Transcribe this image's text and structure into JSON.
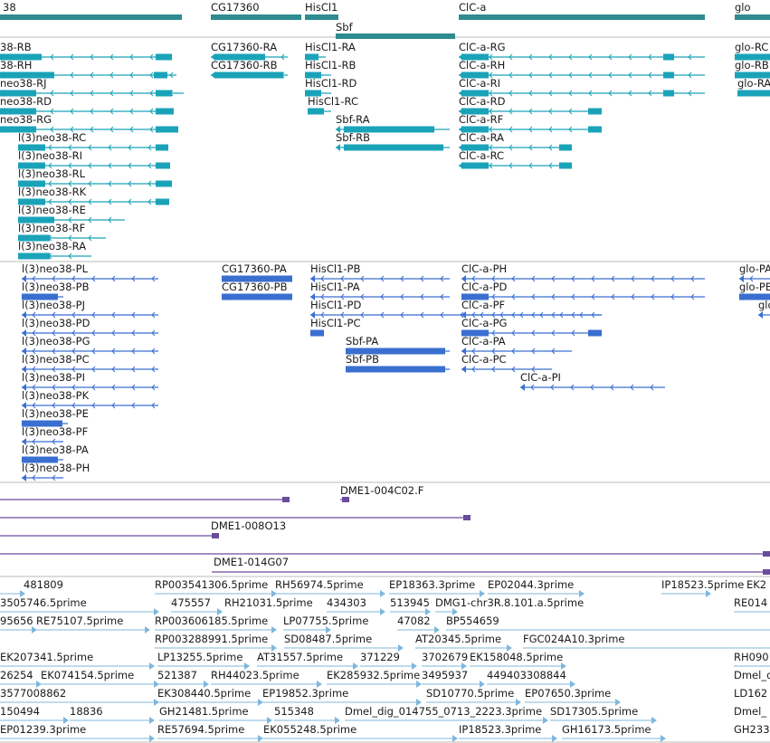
{
  "colors": {
    "gene": "#2e8b8f",
    "transcript_a": "#1aa3b8",
    "transcript_b": "#3a6fd0",
    "clone": "#6a4c9c",
    "est": "#7fb7dd",
    "divider": "#bbbbbb"
  },
  "gene_labels": [
    "38",
    "CG17360",
    "HisCl1",
    "ClC-a",
    "glo",
    "Sbf"
  ],
  "transcripts_a_labels": [
    "38-RB",
    "CG17360-RA",
    "HisCl1-RA",
    "ClC-a-RG",
    "glo-RC",
    "38-RH",
    "CG17360-RB",
    "HisCl1-RB",
    "ClC-a-RH",
    "glo-RB",
    "neo38-RJ",
    "HisCl1-RD",
    "ClC-a-RI",
    "glo-RA",
    "neo38-RD",
    "HisCl1-RC",
    "ClC-a-RD",
    "neo38-RG",
    "Sbf-RA",
    "ClC-a-RF",
    "l(3)neo38-RC",
    "Sbf-RB",
    "ClC-a-RA",
    "l(3)neo38-RI",
    "ClC-a-RC",
    "l(3)neo38-RL",
    "l(3)neo38-RK",
    "l(3)neo38-RE",
    "l(3)neo38-RF",
    "l(3)neo38-RA"
  ],
  "transcripts_b_labels": [
    "l(3)neo38-PL",
    "CG17360-PA",
    "HisCl1-PB",
    "ClC-a-PH",
    "glo-PA",
    "l(3)neo38-PB",
    "CG17360-PB",
    "HisCl1-PA",
    "ClC-a-PD",
    "glo-PB",
    "l(3)neo38-PJ",
    "HisCl1-PD",
    "ClC-a-PF",
    "glo",
    "l(3)neo38-PD",
    "HisCl1-PC",
    "ClC-a-PG",
    "l(3)neo38-PG",
    "Sbf-PA",
    "ClC-a-PA",
    "l(3)neo38-PC",
    "Sbf-PB",
    "ClC-a-PC",
    "l(3)neo38-PI",
    "ClC-a-PI",
    "l(3)neo38-PK",
    "l(3)neo38-PE",
    "l(3)neo38-PF",
    "l(3)neo38-PA",
    "l(3)neo38-PH"
  ],
  "clone_labels": [
    "DME1-004C02.F",
    "DME1-008O13",
    "DME1-014G07"
  ],
  "est_labels": [
    "481809",
    "RP003541306.5prime",
    "RH56974.5prime",
    "EP18363.3prime",
    "EP02044.3prime",
    "IP18523.5prime",
    "EK2",
    "3505746.5prime",
    "475557",
    "RH21031.5prime",
    "434303",
    "513945",
    "DMG1-chr3R.8.101.a.5prime",
    "RE014",
    "95656",
    "RE75107.5prime",
    "RP003606185.5prime",
    "LP07755.5prime",
    "47082",
    "BP554659",
    "RP003288991.5prime",
    "SD08487.5prime",
    "AT20345.5prime",
    "FGC024A10.3prime",
    "EK207341.5prime",
    "LP13255.5prime",
    "AT31557.5prime",
    "371229",
    "3702679",
    "EK158048.5prime",
    "RH090",
    "26254",
    "EK074154.5prime",
    "521387",
    "RH44023.5prime",
    "EK285932.5prime",
    "3495937",
    "449403308844",
    "Dmel_d",
    "3577008862",
    "EK308440.5prime",
    "EP19852.3prime",
    "SD10770.5prime",
    "EP07650.3prime",
    "LD162",
    "150494",
    "18836",
    "GH21481.5prime",
    "515348",
    "Dmel_dig_014755_0713_2223.3prime",
    "SD17305.5prime",
    "Dmel_",
    "EP01239.3prime",
    "RE57694.5prime",
    "EK055248.5prime",
    "IP18523.3prime",
    "GH16173.5prime",
    "GH233"
  ]
}
